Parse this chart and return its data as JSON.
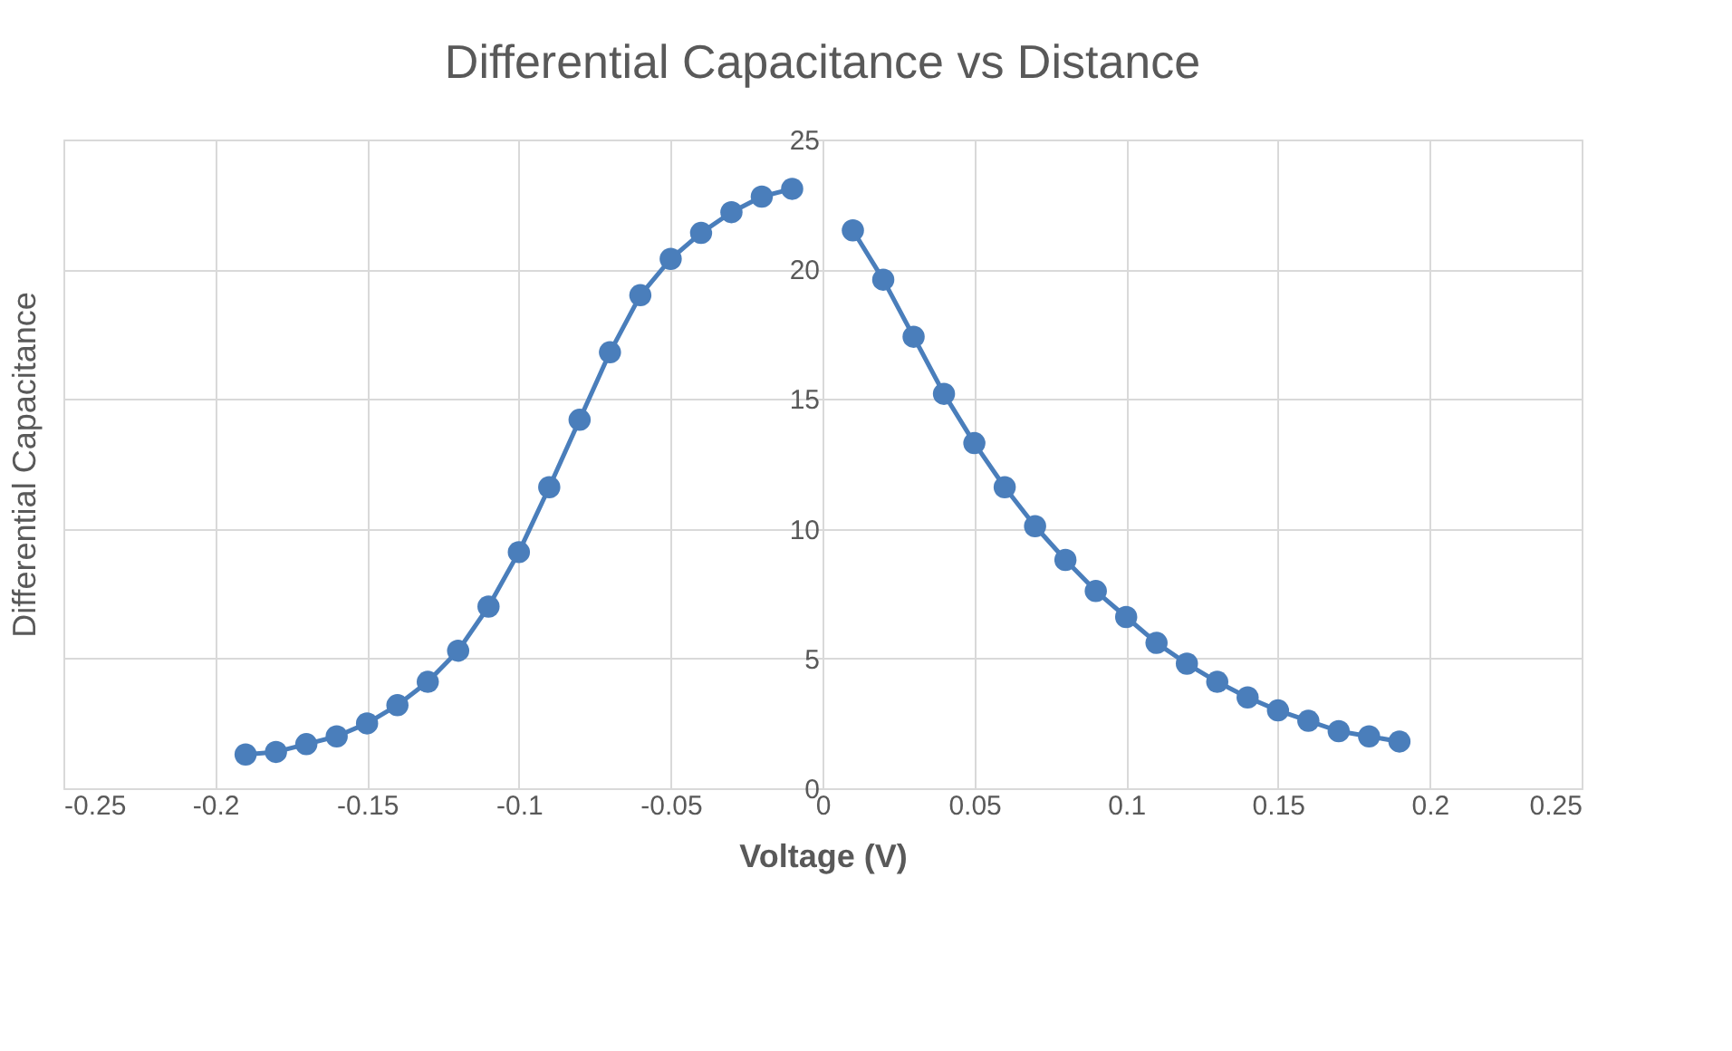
{
  "chart_data": {
    "type": "line",
    "title": "Differential Capacitance vs Distance",
    "xlabel": "Voltage (V)",
    "ylabel": "Differential Capacitance",
    "series": [
      {
        "color": "#4a7ebb",
        "x": [
          -0.19,
          -0.18,
          -0.17,
          -0.16,
          -0.15,
          -0.14,
          -0.13,
          -0.12,
          -0.11,
          -0.1,
          -0.09,
          -0.08,
          -0.07,
          -0.06,
          -0.05,
          -0.04,
          -0.03,
          -0.02,
          -0.01
        ],
        "values": [
          1.3,
          1.4,
          1.7,
          2.0,
          2.5,
          3.2,
          4.1,
          5.3,
          7.0,
          9.1,
          11.6,
          14.2,
          16.8,
          19.0,
          20.4,
          21.4,
          22.2,
          22.8,
          23.1
        ]
      },
      {
        "color": "#4a7ebb",
        "x": [
          0.01,
          0.02,
          0.03,
          0.04,
          0.05,
          0.06,
          0.07,
          0.08,
          0.09,
          0.1,
          0.11,
          0.12,
          0.13,
          0.14,
          0.15,
          0.16,
          0.17,
          0.18,
          0.19
        ],
        "values": [
          21.5,
          19.6,
          17.4,
          15.2,
          13.3,
          11.6,
          10.1,
          8.8,
          7.6,
          6.6,
          5.6,
          4.8,
          4.1,
          3.5,
          3.0,
          2.6,
          2.2,
          2.0,
          1.8
        ]
      }
    ],
    "xlim": [
      -0.25,
      0.25
    ],
    "xticks": [
      -0.25,
      -0.2,
      -0.15,
      -0.1,
      -0.05,
      0,
      0.05,
      0.1,
      0.15,
      0.2,
      0.25
    ],
    "ylim": [
      0,
      25
    ],
    "yticks": [
      0,
      5,
      10,
      15,
      20,
      25
    ],
    "grid": true,
    "legend": false,
    "marker": "circle",
    "line_style": "solid"
  }
}
